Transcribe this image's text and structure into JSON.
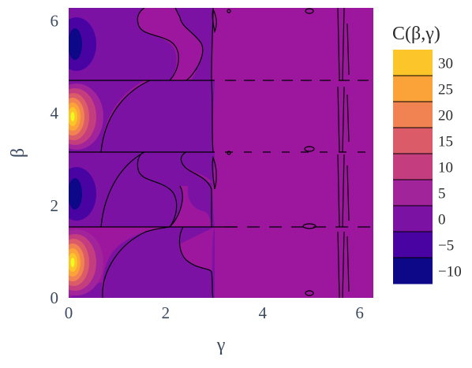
{
  "chart_data": {
    "type": "heatmap",
    "subtype": "filled-contour",
    "xlabel": "γ",
    "ylabel": "β",
    "xlim": [
      0,
      6.283
    ],
    "ylim": [
      0,
      6.283
    ],
    "x_ticks": [
      "0",
      "2",
      "4",
      "6"
    ],
    "y_ticks": [
      "0",
      "2",
      "4",
      "6"
    ],
    "colorbar": {
      "title": "C(β,γ)",
      "range": [
        -12.5,
        32.5
      ],
      "ticks": [
        "30",
        "25",
        "20",
        "15",
        "10",
        "5",
        "0",
        "−5",
        "−10"
      ],
      "levels": [
        -12.5,
        -7.5,
        -2.5,
        2.5,
        7.5,
        12.5,
        17.5,
        22.5,
        27.5,
        32.5
      ],
      "colors": [
        "#0d0887",
        "#4a03a3",
        "#7b12a4",
        "#a1249b",
        "#c33d7f",
        "#db5c68",
        "#f08351",
        "#fba338",
        "#fcc62a",
        "#f0f921"
      ]
    },
    "features": {
      "peaks": [
        {
          "gamma": 0.15,
          "beta": 0.785,
          "value": 31
        },
        {
          "gamma": 0.15,
          "beta": 3.93,
          "value": 31
        }
      ],
      "troughs": [
        {
          "gamma": 0.15,
          "beta": 2.36,
          "value": -11
        },
        {
          "gamma": 0.15,
          "beta": 5.5,
          "value": -11
        }
      ],
      "zero_lines_beta": [
        1.57,
        3.14,
        4.71
      ]
    },
    "grid": false,
    "colorbar_position": "right"
  }
}
